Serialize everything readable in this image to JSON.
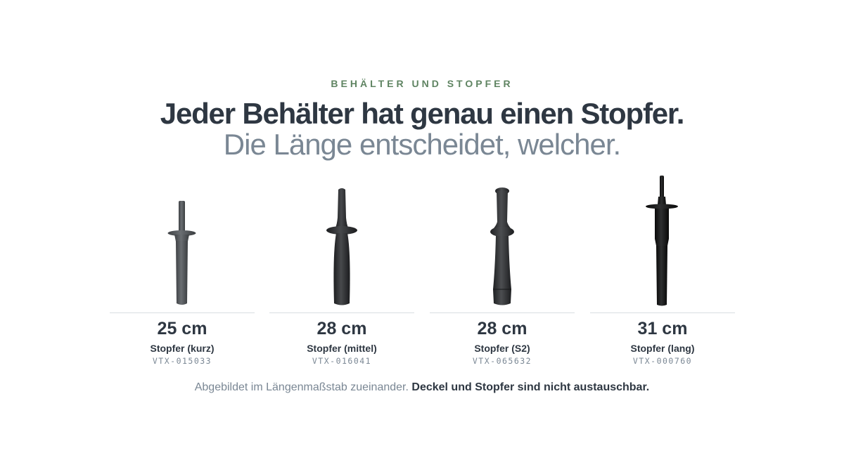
{
  "header": {
    "eyebrow": "BEHÄLTER UND STOPFER",
    "headline": "Jeder Behälter hat genau einen Stopfer.",
    "subline": "Die Länge entscheidet, welcher."
  },
  "products": [
    {
      "length": "25 cm",
      "name": "Stopfer (kurz)",
      "sku": "VTX-015033",
      "icon": "short-tamper-icon",
      "color": "#5e6266"
    },
    {
      "length": "28 cm",
      "name": "Stopfer (mittel)",
      "sku": "VTX-016041",
      "icon": "medium-tamper-icon",
      "color": "#2b2c2e"
    },
    {
      "length": "28 cm",
      "name": "Stopfer (S2)",
      "sku": "VTX-065632",
      "icon": "s2-tamper-icon",
      "color": "#2f3032"
    },
    {
      "length": "31 cm",
      "name": "Stopfer (lang)",
      "sku": "VTX-000760",
      "icon": "long-tamper-icon",
      "color": "#141414"
    }
  ],
  "footnote": {
    "plain": "Abgebildet im Längenmaßstab zueinander.",
    "bold": "Deckel und Stopfer sind nicht austauschbar."
  },
  "colors": {
    "accent": "#5f8462",
    "heading": "#2e3742",
    "muted": "#7a8794"
  }
}
